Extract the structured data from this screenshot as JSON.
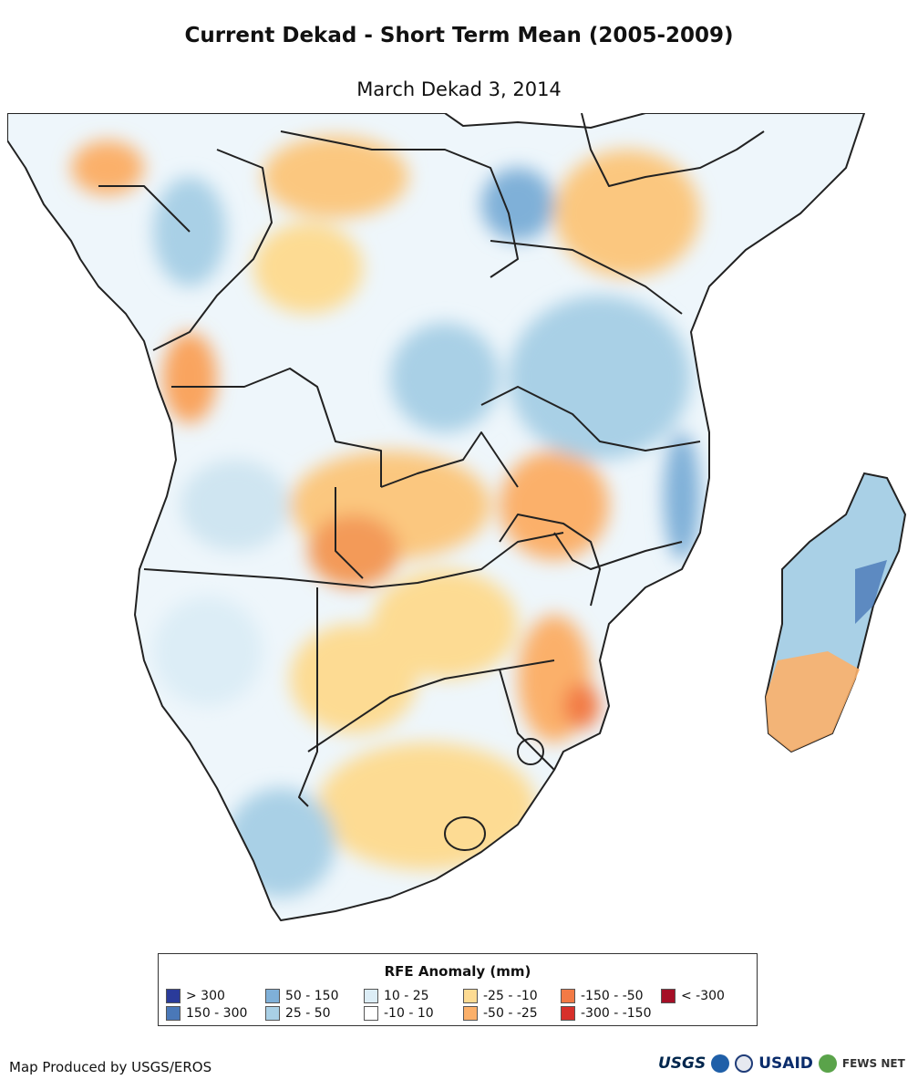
{
  "header": {
    "title": "Current Dekad - Short Term Mean (2005-2009)",
    "subtitle": "March Dekad 3, 2014"
  },
  "legend": {
    "title": "RFE Anomaly (mm)",
    "items": [
      {
        "label": "> 300",
        "color": "#2a3b9a"
      },
      {
        "label": "150 - 300",
        "color": "#4a78b8"
      },
      {
        "label": "50 - 150",
        "color": "#7fb0d8"
      },
      {
        "label": "25 - 50",
        "color": "#a9d0e6"
      },
      {
        "label": "10 - 25",
        "color": "#dcedf6"
      },
      {
        "label": "-10 - 10",
        "color": "#ffffff"
      },
      {
        "label": "-25 - -10",
        "color": "#fddb93"
      },
      {
        "label": "-50 - -25",
        "color": "#fbb06a"
      },
      {
        "label": "-150 - -50",
        "color": "#f27a45"
      },
      {
        "label": "-300 - -150",
        "color": "#d7302a"
      },
      {
        "label": "< -300",
        "color": "#a50f26"
      }
    ]
  },
  "footer": {
    "credit": "Map Produced by USGS/EROS",
    "logos": {
      "usgs": "USGS",
      "usaid": "USAID",
      "fews": "FEWS NET"
    }
  },
  "colors": {
    "ocean": "#ffffff",
    "border": "#222222"
  }
}
